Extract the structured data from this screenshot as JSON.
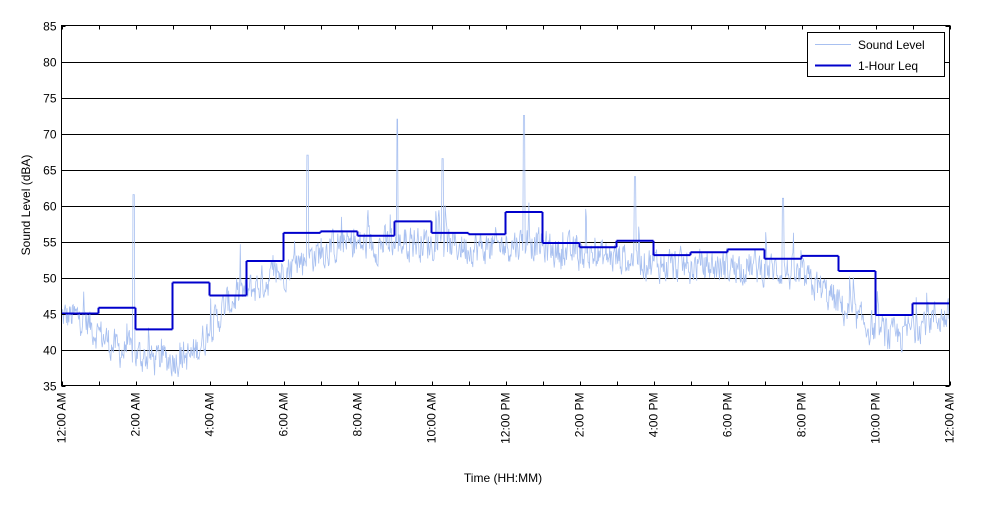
{
  "chart_data": {
    "type": "line",
    "title": "",
    "xlabel": "Time (HH:MM)",
    "ylabel": "Sound Level (dBA)",
    "ylim": [
      35,
      85
    ],
    "xlim_hours": [
      0,
      24
    ],
    "yticks": [
      35,
      40,
      45,
      50,
      55,
      60,
      65,
      70,
      75,
      80,
      85
    ],
    "xtick_hours": [
      0,
      2,
      4,
      6,
      8,
      10,
      12,
      14,
      16,
      18,
      20,
      22,
      24
    ],
    "xtick_labels": [
      "12:00 AM",
      "2:00 AM",
      "4:00 AM",
      "6:00 AM",
      "8:00 AM",
      "10:00 AM",
      "12:00 PM",
      "2:00 PM",
      "4:00 PM",
      "6:00 PM",
      "8:00 PM",
      "10:00 PM",
      "12:00 AM"
    ],
    "grid": "horizontal",
    "legend_position": "top-right",
    "series": [
      {
        "name": "Sound Level",
        "style": "noisy-line",
        "color": "#a8c0f0",
        "hourly_center": [
          44.5,
          40.0,
          38.5,
          39.0,
          46.5,
          49.5,
          52.5,
          54.5,
          54.5,
          55.0,
          54.5,
          54.0,
          55.0,
          53.5,
          53.0,
          52.5,
          51.5,
          51.5,
          51.5,
          51.0,
          48.5,
          44.0,
          41.5,
          44.5
        ],
        "peaks": [
          {
            "hour": 1.95,
            "value": 61.5
          },
          {
            "hour": 6.65,
            "value": 67.0
          },
          {
            "hour": 9.07,
            "value": 72.0
          },
          {
            "hour": 10.3,
            "value": 66.5
          },
          {
            "hour": 12.5,
            "value": 72.5
          },
          {
            "hour": 15.5,
            "value": 64.0
          },
          {
            "hour": 19.5,
            "value": 61.0
          }
        ]
      },
      {
        "name": "1-Hour Leq",
        "style": "step",
        "color": "#0000cc",
        "hours": [
          0,
          1,
          2,
          3,
          4,
          5,
          6,
          7,
          8,
          9,
          10,
          11,
          12,
          13,
          14,
          15,
          16,
          17,
          18,
          19,
          20,
          21,
          22,
          23
        ],
        "values": [
          45.0,
          45.8,
          42.8,
          49.3,
          47.5,
          52.3,
          56.2,
          56.4,
          55.8,
          57.8,
          56.2,
          56.0,
          59.1,
          54.8,
          54.2,
          55.1,
          53.1,
          53.5,
          53.9,
          52.6,
          53.0,
          50.9,
          44.8,
          46.4
        ]
      }
    ]
  }
}
